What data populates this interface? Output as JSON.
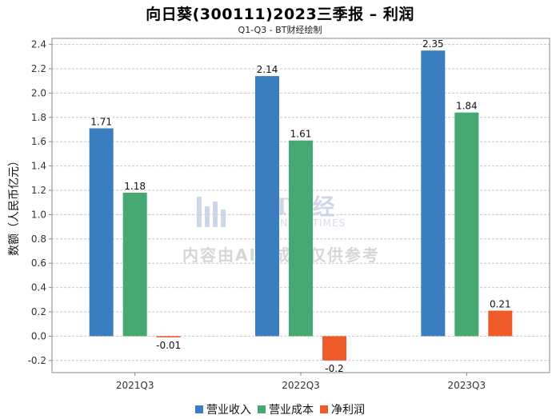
{
  "chart_data": {
    "type": "bar",
    "title": "向日葵(300111)2023三季报 – 利润",
    "subtitle": "Q1-Q3 - BT财经绘制",
    "xlabel": "",
    "ylabel": "数额（人民币亿元）",
    "ylim": [
      -0.3,
      2.45
    ],
    "yticks": [
      "-0.2",
      "0.0",
      "0.2",
      "0.4",
      "0.6",
      "0.8",
      "1.0",
      "1.2",
      "1.4",
      "1.6",
      "1.8",
      "2.0",
      "2.2",
      "2.4"
    ],
    "categories": [
      "2021Q3",
      "2022Q3",
      "2023Q3"
    ],
    "series": [
      {
        "name": "营业收入",
        "color": "#3a7ebf",
        "values": [
          1.71,
          2.14,
          2.35
        ],
        "labels": [
          "1.71",
          "2.14",
          "2.35"
        ]
      },
      {
        "name": "营业成本",
        "color": "#46a972",
        "values": [
          1.18,
          1.61,
          1.84
        ],
        "labels": [
          "1.18",
          "1.61",
          "1.84"
        ]
      },
      {
        "name": "净利润",
        "color": "#ee5a2a",
        "values": [
          -0.01,
          -0.2,
          0.21
        ],
        "labels": [
          "-0.01",
          "-0.2",
          "0.21"
        ]
      }
    ],
    "grid": true,
    "legend_position": "bottom"
  },
  "watermark": {
    "brand": "BT财经",
    "brand_sub": "BUSINESS TIMES",
    "notice": "内容由AI生成，仅供参考"
  }
}
